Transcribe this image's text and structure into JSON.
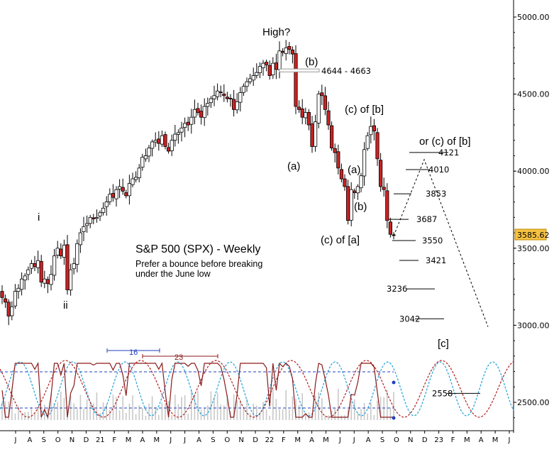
{
  "chart_data": {
    "type": "candlestick",
    "title": "S&P 500 (SPX) - Weekly",
    "subtitle_lines": [
      "Prefer a bounce before breaking",
      "under the June low"
    ],
    "y_axis": {
      "ticks": [
        {
          "value": 5000,
          "label": "5000.00"
        },
        {
          "value": 4500,
          "label": "4500.00"
        },
        {
          "value": 4000,
          "label": "4000.00"
        },
        {
          "value": 3500,
          "label": "3500.00"
        },
        {
          "value": 3000,
          "label": "3000.00"
        },
        {
          "value": 2500,
          "label": "2500.00"
        }
      ],
      "last_price": 3585.62,
      "last_price_label": "3585.62"
    },
    "x_axis": {
      "labels": [
        "J",
        "A",
        "S",
        "O",
        "N",
        "D",
        "21",
        "F",
        "M",
        "A",
        "M",
        "J",
        "J",
        "A",
        "S",
        "O",
        "N",
        "D",
        "22",
        "F",
        "M",
        "A",
        "M",
        "J",
        "J",
        "A",
        "S",
        "O",
        "N",
        "D",
        "23",
        "F",
        "M",
        "A",
        "M",
        "J"
      ]
    },
    "weekly_closes": [
      3180,
      3150,
      3060,
      3120,
      3220,
      3240,
      3300,
      3320,
      3360,
      3400,
      3380,
      3420,
      3280,
      3300,
      3270,
      3330,
      3450,
      3500,
      3450,
      3520,
      3230,
      3360,
      3400,
      3530,
      3600,
      3640,
      3660,
      3700,
      3690,
      3700,
      3730,
      3760,
      3800,
      3850,
      3830,
      3880,
      3900,
      3870,
      3840,
      3920,
      3950,
      3960,
      4020,
      4090,
      4100,
      4150,
      4190,
      4200,
      4180,
      4230,
      4160,
      4130,
      4200,
      4240,
      4250,
      4280,
      4310,
      4300,
      4350,
      4400,
      4380,
      4350,
      4420,
      4440,
      4470,
      4490,
      4520,
      4510,
      4490,
      4470,
      4470,
      4400,
      4450,
      4510,
      4550,
      4580,
      4600,
      4620,
      4640,
      4680,
      4700,
      4690,
      4620,
      4700,
      4660,
      4780,
      4770,
      4800,
      4790,
      4760,
      4420,
      4400,
      4350,
      4380,
      4300,
      4160,
      4320,
      4500,
      4490,
      4400,
      4300,
      4150,
      4120,
      4020,
      3950,
      3900,
      3680,
      3880,
      3860,
      3900,
      3970,
      4140,
      4230,
      4290,
      4260,
      4080,
      3900,
      3880,
      3680,
      3590,
      3585.62
    ],
    "annotations": [
      {
        "text": "High?"
      },
      {
        "text": "(b)"
      },
      {
        "text": "4644 - 4663"
      },
      {
        "text": "(c) of [b]"
      },
      {
        "text": "(a)"
      },
      {
        "text": "(a)"
      },
      {
        "text": "(b)"
      },
      {
        "text": "(c) of [a]"
      },
      {
        "text": "or (c) of [b]"
      },
      {
        "text": "[c]"
      },
      {
        "text": "i"
      },
      {
        "text": "ii"
      }
    ],
    "target_levels": [
      {
        "value": 4121,
        "label": "4121"
      },
      {
        "value": 4010,
        "label": "4010"
      },
      {
        "value": 3853,
        "label": "3853"
      },
      {
        "value": 3687,
        "label": "3687"
      },
      {
        "value": 3550,
        "label": "3550"
      },
      {
        "value": 3421,
        "label": "3421"
      },
      {
        "value": 3236,
        "label": "3236"
      },
      {
        "value": 3042,
        "label": "3042"
      },
      {
        "value": 2558,
        "label": "2558"
      }
    ],
    "cycles": [
      {
        "name": "16",
        "color": "#1f3fbf",
        "period_weeks": 16
      },
      {
        "name": "23",
        "color": "#8b1a1a",
        "period_weeks": 23
      }
    ],
    "colors": {
      "up_candle": "#ffffff",
      "down_candle": "#cc2222",
      "last_candle": "#cc6600",
      "stochastic": "#8b1a1a",
      "cycle_16": "#1fa0d8",
      "cycle_23": "#b02020",
      "band_line": "#1f3fbf",
      "volume_bars": "#c8c8c8"
    }
  }
}
